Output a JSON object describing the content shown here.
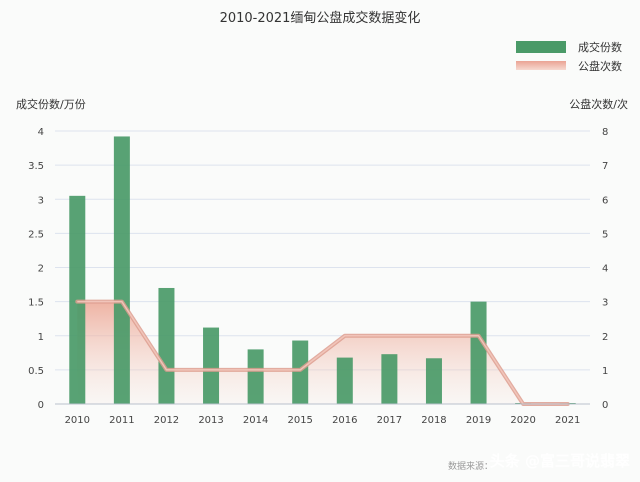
{
  "chart_data": {
    "type": "bar",
    "title": "2010-2021缅甸公盘成交数据变化",
    "categories": [
      "2010",
      "2011",
      "2012",
      "2013",
      "2014",
      "2015",
      "2016",
      "2017",
      "2018",
      "2019",
      "2020",
      "2021"
    ],
    "y_left_label": "成交份数/万份",
    "y_right_label": "公盘次数/次",
    "y_left_ticks": [
      "0",
      "0.5",
      "1",
      "1.5",
      "2",
      "2.5",
      "3",
      "3.5",
      "4"
    ],
    "y_right_ticks": [
      "0",
      "1",
      "2",
      "3",
      "4",
      "5",
      "6",
      "7",
      "8"
    ],
    "y_left_lim": [
      0,
      4
    ],
    "y_right_lim": [
      0,
      8
    ],
    "series": [
      {
        "name": "成交份数",
        "type": "bar",
        "axis": "left",
        "color": "#4a9a68",
        "values": [
          3.05,
          3.92,
          1.7,
          1.12,
          0.8,
          0.93,
          0.68,
          0.73,
          0.67,
          1.5,
          0.01,
          0.01
        ]
      },
      {
        "name": "公盘次数",
        "type": "line",
        "axis": "right",
        "color": "#e3a89b",
        "values": [
          3,
          3,
          1,
          1,
          1,
          1,
          2,
          2,
          2,
          2,
          0,
          0
        ]
      }
    ],
    "legend_position": "top-right",
    "grid": true
  },
  "source_text": "数据来源：",
  "watermark": "头条 @富三哥说翡翠"
}
